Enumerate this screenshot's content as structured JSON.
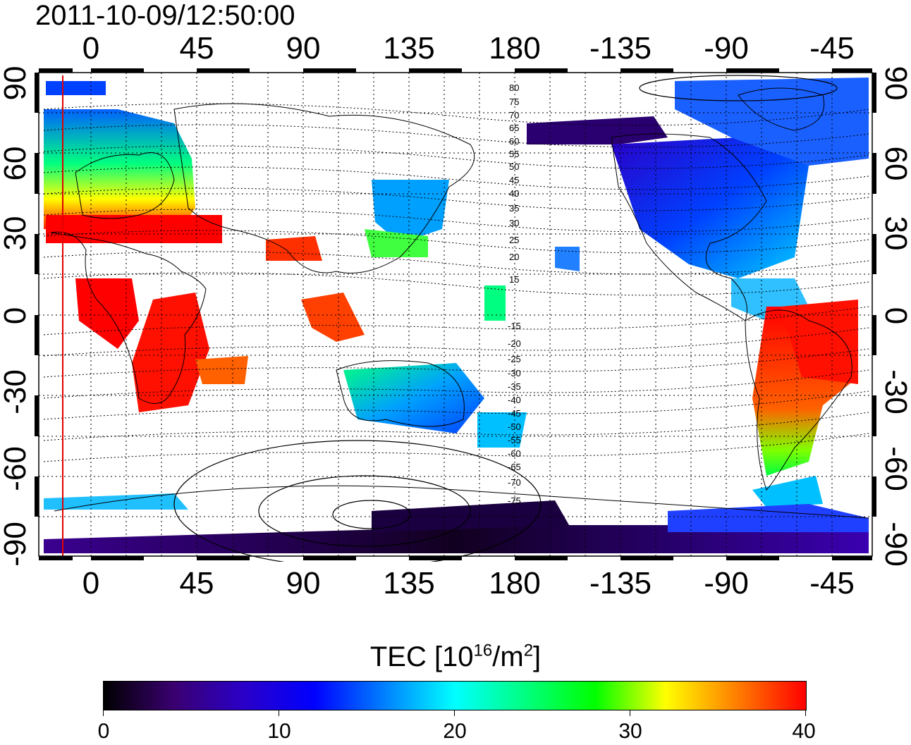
{
  "title": "2011-10-09/12:50:00",
  "map": {
    "top_ticks": [
      "0",
      "45",
      "90",
      "135",
      "180",
      "-135",
      "-90",
      "-45"
    ],
    "bottom_ticks": [
      "0",
      "45",
      "90",
      "135",
      "180",
      "-135",
      "-90",
      "-45"
    ],
    "left_ticks": [
      "90",
      "60",
      "30",
      "0",
      "-30",
      "-60",
      "-90"
    ],
    "right_ticks": [
      "90",
      "60",
      "30",
      "0",
      "-30",
      "-60",
      "-90"
    ],
    "contour_labels_north": [
      "80",
      "75",
      "70",
      "65",
      "60",
      "55",
      "50",
      "45",
      "40",
      "35",
      "30",
      "25",
      "20",
      "15"
    ],
    "contour_labels_south": [
      "-15",
      "-20",
      "-25",
      "-30",
      "-35",
      "-40",
      "-45",
      "-50",
      "-55",
      "-60",
      "-65",
      "-70",
      "-75"
    ],
    "marker_line_color": "#e00000"
  },
  "colorbar": {
    "label_main": "TEC  [10",
    "label_exp1": "16",
    "label_mid": "/m",
    "label_exp2": "2",
    "label_end": "]",
    "ticks": [
      "0",
      "10",
      "20",
      "30",
      "40"
    ],
    "colors": [
      "#000000",
      "#3a0070",
      "#2a00c8",
      "#0000ff",
      "#0080ff",
      "#00ffff",
      "#00ff80",
      "#00ff00",
      "#ffff00",
      "#ff8000",
      "#ff0000"
    ]
  }
}
